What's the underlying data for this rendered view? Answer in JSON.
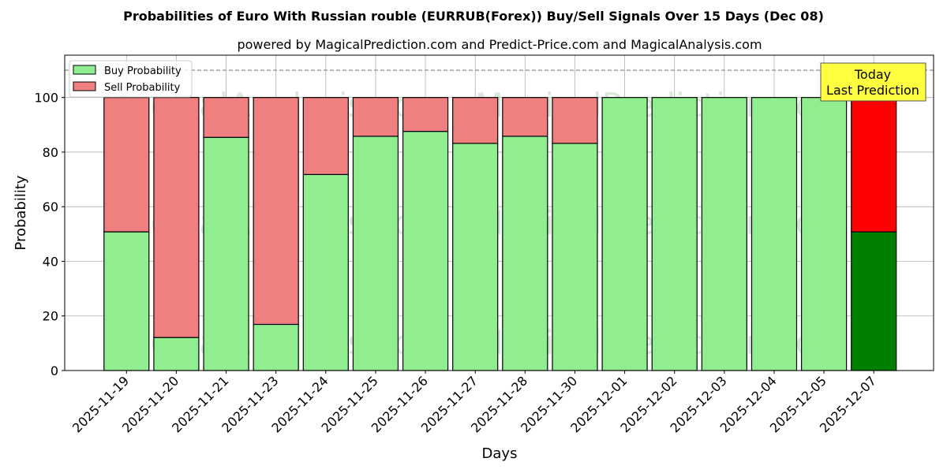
{
  "chart_data": {
    "type": "bar",
    "stacked": true,
    "title": "Probabilities of Euro With Russian rouble (EURRUB(Forex)) Buy/Sell Signals Over 15 Days (Dec 08)",
    "subtitle": "powered by MagicalPrediction.com and Predict-Price.com and MagicalAnalysis.com",
    "xlabel": "Days",
    "ylabel": "Probability",
    "ylim": [
      0,
      115.5
    ],
    "yticks": [
      0,
      20,
      40,
      60,
      80,
      100
    ],
    "grid": true,
    "reference_line": 110,
    "legend": {
      "placement": "top-left",
      "entries": [
        "Buy Probability",
        "Sell Probability"
      ]
    },
    "categories": [
      "2025-11-19",
      "2025-11-20",
      "2025-11-21",
      "2025-11-23",
      "2025-11-24",
      "2025-11-25",
      "2025-11-26",
      "2025-11-27",
      "2025-11-28",
      "2025-11-30",
      "2025-12-01",
      "2025-12-02",
      "2025-12-03",
      "2025-12-04",
      "2025-12-05",
      "2025-12-07"
    ],
    "series": [
      {
        "name": "Buy Probability",
        "values": [
          50.8,
          12.1,
          85.4,
          16.9,
          71.8,
          85.8,
          87.6,
          83.2,
          85.8,
          83.2,
          100,
          100,
          100,
          100,
          100,
          50.8
        ]
      },
      {
        "name": "Sell Probability",
        "values": [
          49.2,
          87.9,
          14.6,
          83.1,
          28.2,
          14.2,
          12.4,
          16.8,
          14.2,
          16.8,
          0,
          0,
          0,
          0,
          0,
          49.2
        ]
      }
    ],
    "colors": {
      "buy": "#90ee90",
      "sell": "#f08080",
      "today_buy": "#008000",
      "today_sell": "#ff0000",
      "annotation_bg": "#ffff40"
    },
    "annotation": {
      "line1": "Today",
      "line2": "Last Prediction"
    },
    "watermarks": [
      "MagicalAnalysis.com",
      "MagicalPrediction.com"
    ]
  }
}
